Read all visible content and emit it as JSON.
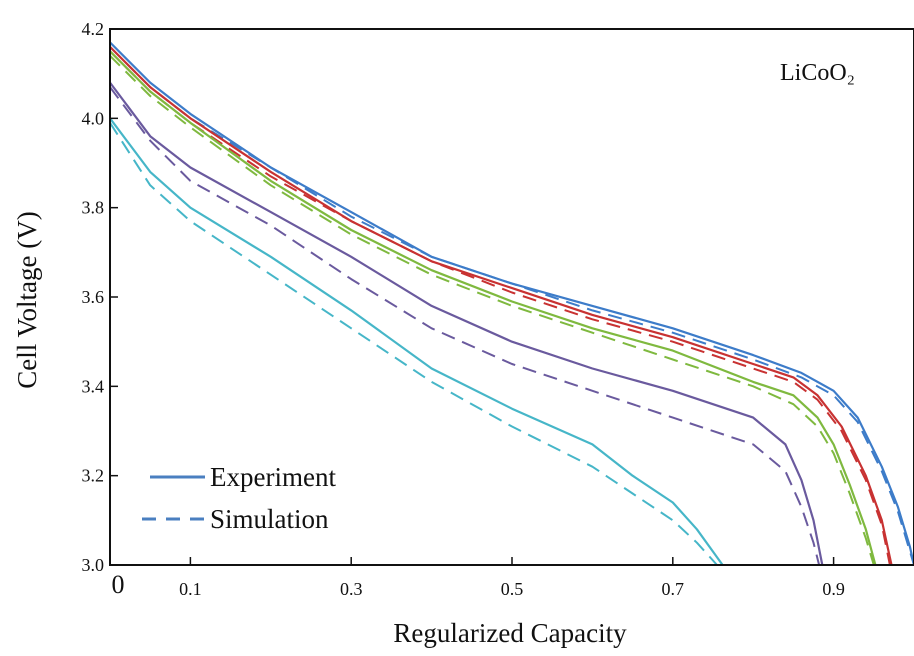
{
  "chart_data": {
    "type": "line",
    "xlabel": "Regularized Capacity",
    "ylabel": "Cell Voltage (V)",
    "annotation": "LiCoO₂",
    "xlim": [
      0,
      1.0
    ],
    "ylim": [
      3.0,
      4.2
    ],
    "xticks": [
      {
        "value": 0,
        "label": "0"
      },
      {
        "value": 0.1,
        "label": "0.1"
      },
      {
        "value": 0.3,
        "label": "0.3"
      },
      {
        "value": 0.5,
        "label": "0.5"
      },
      {
        "value": 0.7,
        "label": "0.7"
      },
      {
        "value": 0.9,
        "label": "0.9"
      }
    ],
    "yticks": [
      {
        "value": 3.0,
        "label": "3.0"
      },
      {
        "value": 3.2,
        "label": "3.2"
      },
      {
        "value": 3.4,
        "label": "3.4"
      },
      {
        "value": 3.6,
        "label": "3.6"
      },
      {
        "value": 3.8,
        "label": "3.8"
      },
      {
        "value": 4.0,
        "label": "4.0"
      },
      {
        "value": 4.2,
        "label": "4.2"
      }
    ],
    "grid": false,
    "legend": {
      "position": "bottom-left",
      "entries": [
        {
          "label": "Experiment",
          "style": "solid",
          "color": "#4a7fc0"
        },
        {
          "label": "Simulation",
          "style": "dashed",
          "color": "#4a7fc0"
        }
      ]
    },
    "series": [
      {
        "style": "solid",
        "color": "#3d7cc9",
        "points": [
          [
            0,
            4.17
          ],
          [
            0.05,
            4.08
          ],
          [
            0.1,
            4.01
          ],
          [
            0.2,
            3.89
          ],
          [
            0.3,
            3.79
          ],
          [
            0.4,
            3.69
          ],
          [
            0.5,
            3.63
          ],
          [
            0.6,
            3.58
          ],
          [
            0.7,
            3.53
          ],
          [
            0.8,
            3.47
          ],
          [
            0.86,
            3.43
          ],
          [
            0.9,
            3.39
          ],
          [
            0.93,
            3.33
          ],
          [
            0.96,
            3.22
          ],
          [
            0.98,
            3.13
          ],
          [
            0.995,
            3.04
          ],
          [
            1.0,
            3.0
          ]
        ]
      },
      {
        "style": "dashed",
        "color": "#3d7cc9",
        "points": [
          [
            0,
            4.16
          ],
          [
            0.05,
            4.07
          ],
          [
            0.1,
            4.0
          ],
          [
            0.2,
            3.89
          ],
          [
            0.3,
            3.78
          ],
          [
            0.4,
            3.69
          ],
          [
            0.5,
            3.63
          ],
          [
            0.6,
            3.57
          ],
          [
            0.7,
            3.52
          ],
          [
            0.8,
            3.46
          ],
          [
            0.86,
            3.42
          ],
          [
            0.9,
            3.38
          ],
          [
            0.93,
            3.32
          ],
          [
            0.96,
            3.21
          ],
          [
            0.98,
            3.12
          ],
          [
            1.0,
            3.0
          ]
        ]
      },
      {
        "style": "solid",
        "color": "#c83232",
        "points": [
          [
            0,
            4.16
          ],
          [
            0.05,
            4.07
          ],
          [
            0.1,
            4.0
          ],
          [
            0.2,
            3.88
          ],
          [
            0.3,
            3.77
          ],
          [
            0.4,
            3.68
          ],
          [
            0.5,
            3.62
          ],
          [
            0.6,
            3.56
          ],
          [
            0.7,
            3.51
          ],
          [
            0.8,
            3.45
          ],
          [
            0.85,
            3.42
          ],
          [
            0.88,
            3.38
          ],
          [
            0.91,
            3.31
          ],
          [
            0.94,
            3.2
          ],
          [
            0.96,
            3.1
          ],
          [
            0.972,
            3.0
          ]
        ]
      },
      {
        "style": "dashed",
        "color": "#c83232",
        "points": [
          [
            0,
            4.15
          ],
          [
            0.05,
            4.06
          ],
          [
            0.1,
            3.99
          ],
          [
            0.2,
            3.87
          ],
          [
            0.3,
            3.77
          ],
          [
            0.4,
            3.68
          ],
          [
            0.5,
            3.61
          ],
          [
            0.6,
            3.55
          ],
          [
            0.7,
            3.5
          ],
          [
            0.8,
            3.44
          ],
          [
            0.85,
            3.41
          ],
          [
            0.88,
            3.37
          ],
          [
            0.91,
            3.3
          ],
          [
            0.94,
            3.19
          ],
          [
            0.96,
            3.09
          ],
          [
            0.97,
            3.0
          ]
        ]
      },
      {
        "style": "solid",
        "color": "#7fb93f",
        "points": [
          [
            0,
            4.15
          ],
          [
            0.05,
            4.06
          ],
          [
            0.1,
            3.99
          ],
          [
            0.2,
            3.86
          ],
          [
            0.3,
            3.75
          ],
          [
            0.4,
            3.66
          ],
          [
            0.5,
            3.59
          ],
          [
            0.6,
            3.53
          ],
          [
            0.7,
            3.48
          ],
          [
            0.8,
            3.41
          ],
          [
            0.85,
            3.38
          ],
          [
            0.88,
            3.33
          ],
          [
            0.9,
            3.27
          ],
          [
            0.92,
            3.18
          ],
          [
            0.94,
            3.08
          ],
          [
            0.952,
            3.0
          ]
        ]
      },
      {
        "style": "dashed",
        "color": "#7fb93f",
        "points": [
          [
            0,
            4.14
          ],
          [
            0.05,
            4.05
          ],
          [
            0.1,
            3.98
          ],
          [
            0.2,
            3.85
          ],
          [
            0.3,
            3.74
          ],
          [
            0.4,
            3.65
          ],
          [
            0.5,
            3.58
          ],
          [
            0.6,
            3.52
          ],
          [
            0.7,
            3.46
          ],
          [
            0.8,
            3.4
          ],
          [
            0.85,
            3.36
          ],
          [
            0.88,
            3.31
          ],
          [
            0.9,
            3.25
          ],
          [
            0.92,
            3.16
          ],
          [
            0.94,
            3.06
          ],
          [
            0.95,
            3.0
          ]
        ]
      },
      {
        "style": "solid",
        "color": "#6a5a9e",
        "points": [
          [
            0,
            4.08
          ],
          [
            0.05,
            3.96
          ],
          [
            0.1,
            3.89
          ],
          [
            0.2,
            3.79
          ],
          [
            0.3,
            3.69
          ],
          [
            0.4,
            3.58
          ],
          [
            0.5,
            3.5
          ],
          [
            0.6,
            3.44
          ],
          [
            0.7,
            3.39
          ],
          [
            0.8,
            3.33
          ],
          [
            0.84,
            3.27
          ],
          [
            0.86,
            3.19
          ],
          [
            0.875,
            3.1
          ],
          [
            0.886,
            3.0
          ]
        ]
      },
      {
        "style": "dashed",
        "color": "#6a5a9e",
        "points": [
          [
            0,
            4.07
          ],
          [
            0.05,
            3.95
          ],
          [
            0.1,
            3.86
          ],
          [
            0.2,
            3.76
          ],
          [
            0.3,
            3.64
          ],
          [
            0.4,
            3.53
          ],
          [
            0.5,
            3.45
          ],
          [
            0.6,
            3.39
          ],
          [
            0.7,
            3.33
          ],
          [
            0.8,
            3.27
          ],
          [
            0.84,
            3.21
          ],
          [
            0.86,
            3.13
          ],
          [
            0.875,
            3.05
          ],
          [
            0.882,
            3.0
          ]
        ]
      },
      {
        "style": "solid",
        "color": "#46b6c8",
        "points": [
          [
            0,
            4.0
          ],
          [
            0.05,
            3.88
          ],
          [
            0.1,
            3.8
          ],
          [
            0.2,
            3.69
          ],
          [
            0.3,
            3.57
          ],
          [
            0.4,
            3.44
          ],
          [
            0.5,
            3.35
          ],
          [
            0.6,
            3.27
          ],
          [
            0.65,
            3.2
          ],
          [
            0.7,
            3.14
          ],
          [
            0.73,
            3.08
          ],
          [
            0.75,
            3.03
          ],
          [
            0.762,
            3.0
          ]
        ]
      },
      {
        "style": "dashed",
        "color": "#46b6c8",
        "points": [
          [
            0,
            3.99
          ],
          [
            0.05,
            3.85
          ],
          [
            0.1,
            3.77
          ],
          [
            0.2,
            3.65
          ],
          [
            0.3,
            3.53
          ],
          [
            0.4,
            3.41
          ],
          [
            0.5,
            3.31
          ],
          [
            0.6,
            3.22
          ],
          [
            0.65,
            3.16
          ],
          [
            0.7,
            3.1
          ],
          [
            0.73,
            3.05
          ],
          [
            0.75,
            3.01
          ],
          [
            0.755,
            3.0
          ]
        ]
      }
    ]
  }
}
